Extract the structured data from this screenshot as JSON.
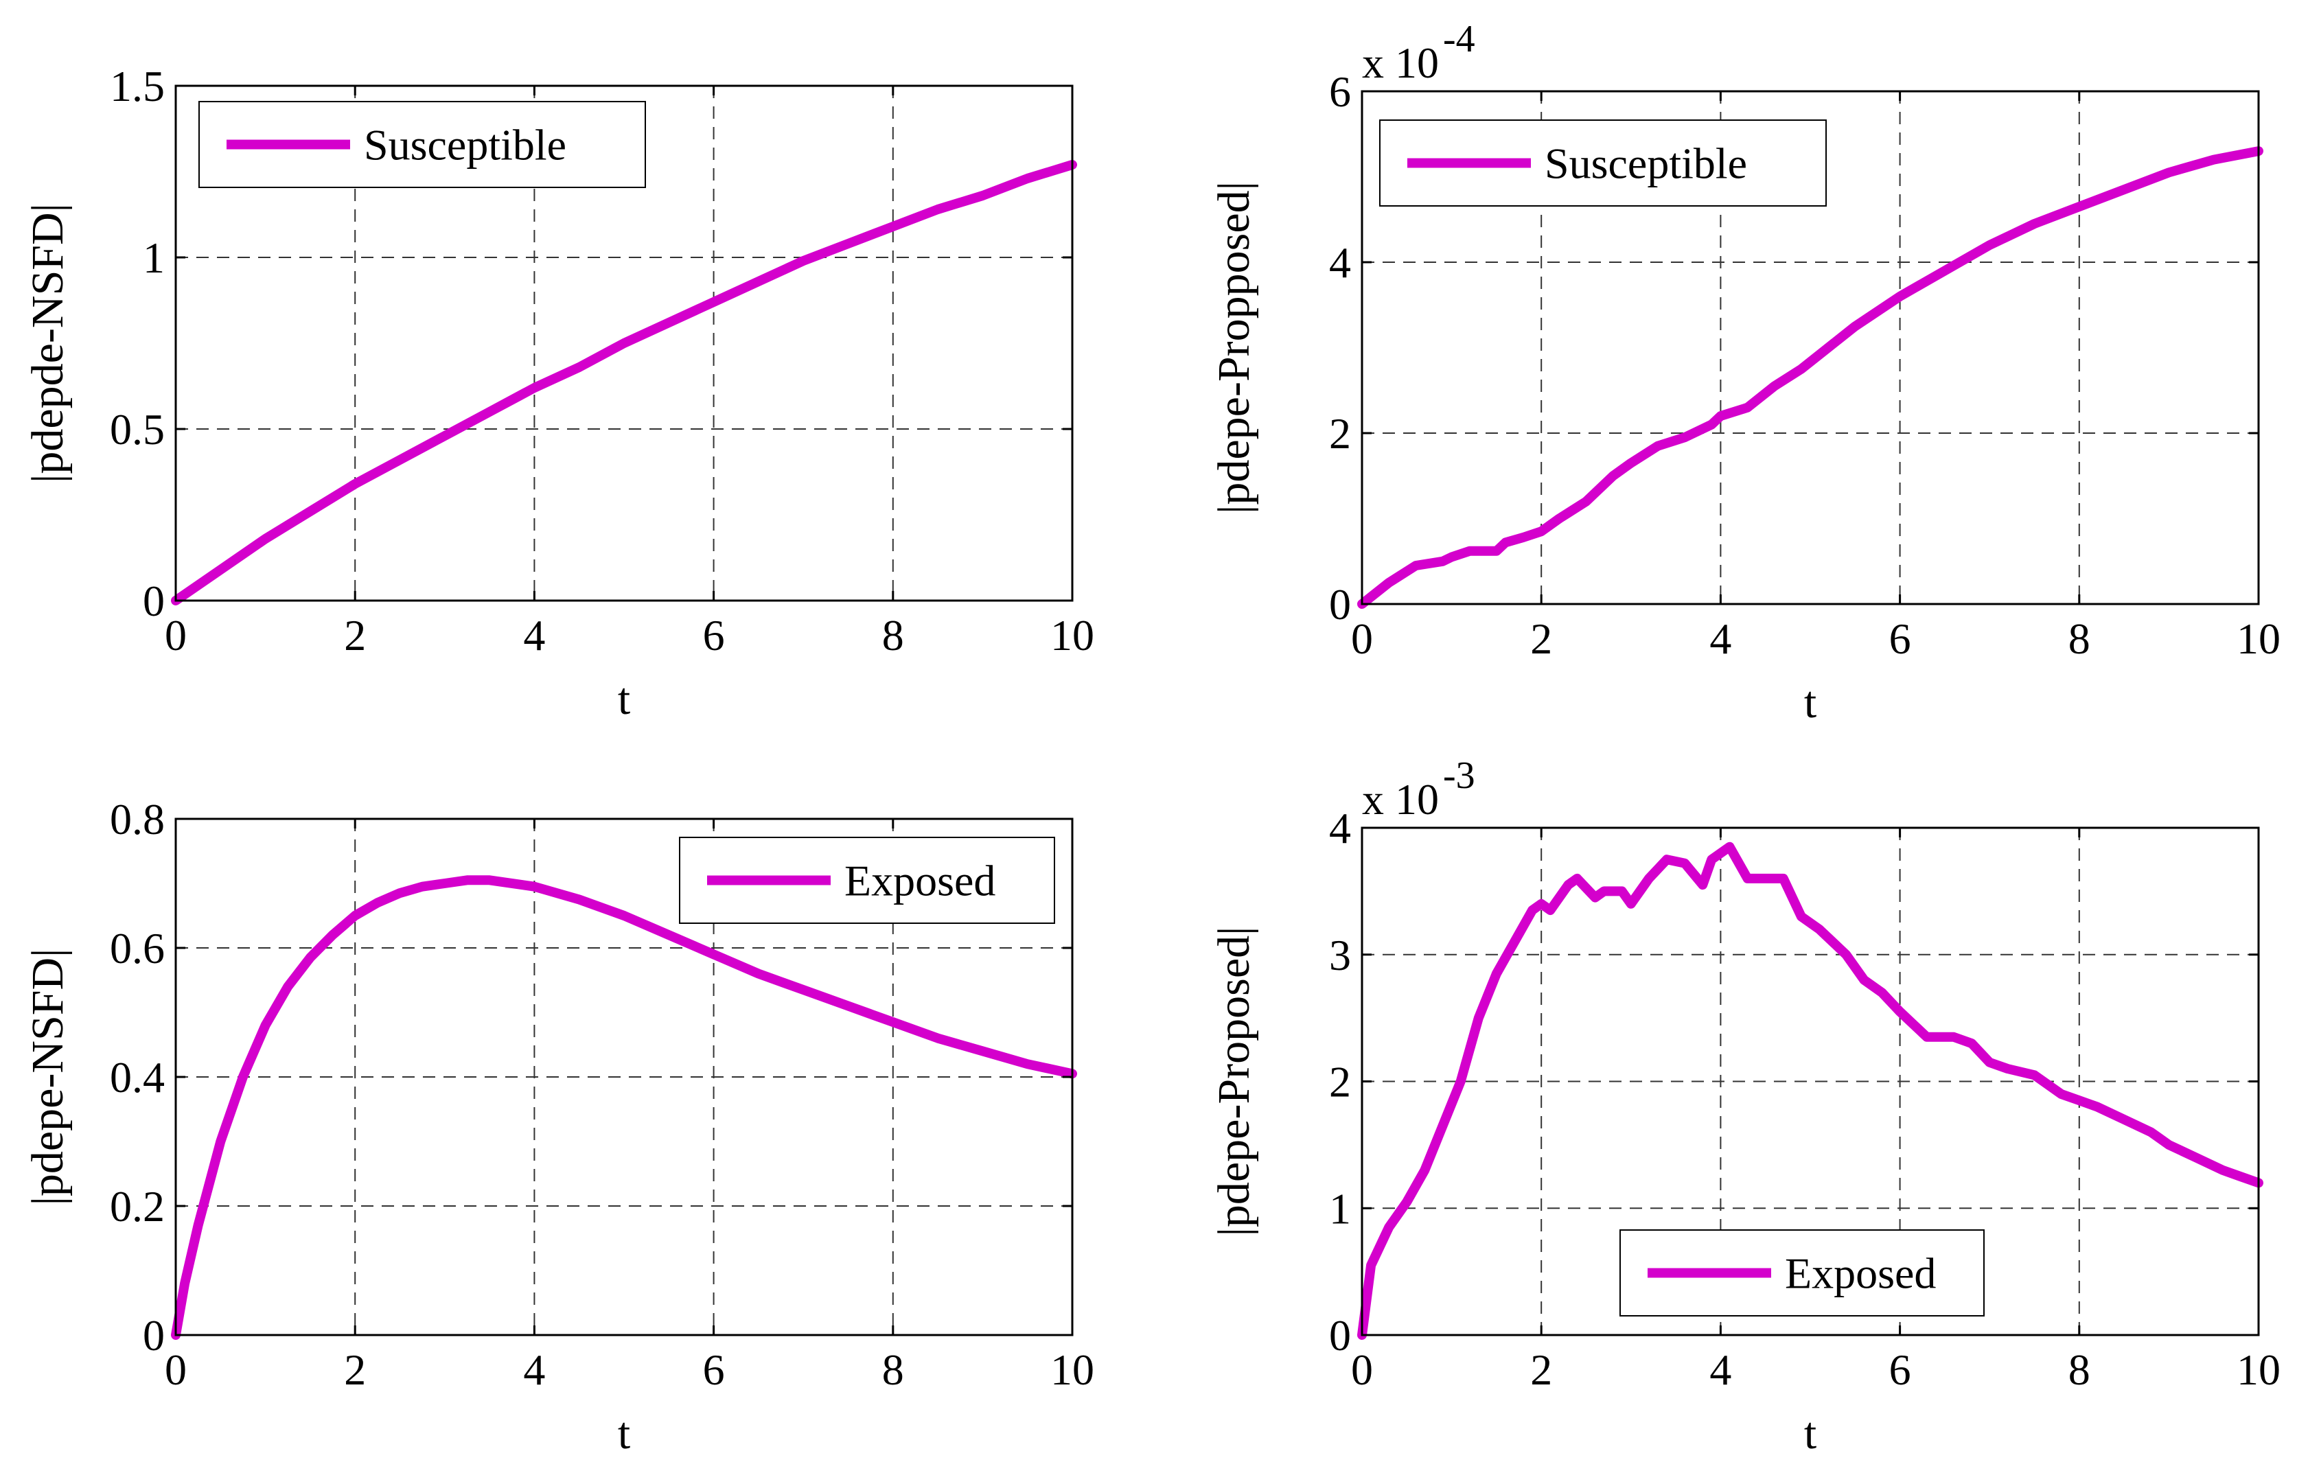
{
  "figure": {
    "line_color": "#d400cc"
  },
  "chart_data": [
    {
      "type": "line",
      "id": "susceptible-nsfd",
      "title": "",
      "xlabel": "t",
      "ylabel": "|pdepde-NSFD|",
      "xlim": [
        0,
        10
      ],
      "ylim": [
        0,
        1.5
      ],
      "xticks": [
        0,
        2,
        4,
        6,
        8,
        10
      ],
      "yticks": [
        0,
        0.5,
        1,
        1.5
      ],
      "xtick_labels": [
        "0",
        "2",
        "4",
        "6",
        "8",
        "10"
      ],
      "ytick_labels": [
        "0",
        "0.5",
        "1",
        "1.5"
      ],
      "multiplier_label": "",
      "grid": true,
      "legend": {
        "position": "top-left",
        "entries": [
          "Susceptible"
        ]
      },
      "series": [
        {
          "name": "Susceptible",
          "x": [
            0,
            0.5,
            1,
            1.5,
            2,
            2.5,
            3,
            3.5,
            4,
            4.5,
            5,
            5.5,
            6,
            6.5,
            7,
            7.5,
            8,
            8.5,
            9,
            9.5,
            10
          ],
          "y": [
            0,
            0.09,
            0.18,
            0.26,
            0.34,
            0.41,
            0.48,
            0.55,
            0.62,
            0.68,
            0.75,
            0.81,
            0.87,
            0.93,
            0.99,
            1.04,
            1.09,
            1.14,
            1.18,
            1.23,
            1.27
          ]
        }
      ]
    },
    {
      "type": "line",
      "id": "susceptible-proposed",
      "title": "",
      "xlabel": "t",
      "ylabel": "|pdepe-Propposed|",
      "xlim": [
        0,
        10
      ],
      "ylim": [
        0,
        6
      ],
      "xticks": [
        0,
        2,
        4,
        6,
        8,
        10
      ],
      "yticks": [
        0,
        2,
        4,
        6
      ],
      "xtick_labels": [
        "0",
        "2",
        "4",
        "6",
        "8",
        "10"
      ],
      "ytick_labels": [
        "0",
        "2",
        "4",
        "6"
      ],
      "multiplier_label": "x 10",
      "multiplier_exponent": "-4",
      "grid": true,
      "legend": {
        "position": "top-left",
        "entries": [
          "Susceptible"
        ]
      },
      "series": [
        {
          "name": "Susceptible",
          "x": [
            0,
            0.3,
            0.6,
            0.9,
            1.0,
            1.2,
            1.5,
            1.6,
            1.8,
            2.0,
            2.2,
            2.5,
            2.8,
            3.0,
            3.3,
            3.6,
            3.9,
            4.0,
            4.3,
            4.6,
            4.9,
            5.2,
            5.5,
            6.0,
            6.5,
            7.0,
            7.5,
            8.0,
            8.5,
            9.0,
            9.5,
            10
          ],
          "y": [
            0,
            0.25,
            0.45,
            0.5,
            0.55,
            0.62,
            0.62,
            0.72,
            0.78,
            0.85,
            1.0,
            1.2,
            1.5,
            1.65,
            1.85,
            1.95,
            2.1,
            2.2,
            2.3,
            2.55,
            2.75,
            3.0,
            3.25,
            3.6,
            3.9,
            4.2,
            4.45,
            4.65,
            4.85,
            5.05,
            5.2,
            5.3
          ]
        }
      ]
    },
    {
      "type": "line",
      "id": "exposed-nsfd",
      "title": "",
      "xlabel": "t",
      "ylabel": "|pdepe-NSFD|",
      "xlim": [
        0,
        10
      ],
      "ylim": [
        0,
        0.8
      ],
      "xticks": [
        0,
        2,
        4,
        6,
        8,
        10
      ],
      "yticks": [
        0,
        0.2,
        0.4,
        0.6,
        0.8
      ],
      "xtick_labels": [
        "0",
        "2",
        "4",
        "6",
        "8",
        "10"
      ],
      "ytick_labels": [
        "0",
        "0.2",
        "0.4",
        "0.6",
        "0.8"
      ],
      "multiplier_label": "",
      "grid": true,
      "legend": {
        "position": "top-right",
        "entries": [
          "Exposed"
        ]
      },
      "series": [
        {
          "name": "Exposed",
          "x": [
            0,
            0.1,
            0.25,
            0.5,
            0.75,
            1.0,
            1.25,
            1.5,
            1.75,
            2.0,
            2.25,
            2.5,
            2.75,
            3.0,
            3.25,
            3.5,
            4.0,
            4.5,
            5.0,
            5.5,
            6.0,
            6.5,
            7.0,
            7.5,
            8.0,
            8.5,
            9.0,
            9.5,
            10
          ],
          "y": [
            0,
            0.08,
            0.17,
            0.3,
            0.4,
            0.48,
            0.54,
            0.585,
            0.62,
            0.65,
            0.67,
            0.685,
            0.695,
            0.7,
            0.705,
            0.705,
            0.695,
            0.675,
            0.65,
            0.62,
            0.59,
            0.56,
            0.535,
            0.51,
            0.485,
            0.46,
            0.44,
            0.42,
            0.405
          ]
        }
      ]
    },
    {
      "type": "line",
      "id": "exposed-proposed",
      "title": "",
      "xlabel": "t",
      "ylabel": "|pdepe-Proposed|",
      "xlim": [
        0,
        10
      ],
      "ylim": [
        0,
        4
      ],
      "xticks": [
        0,
        2,
        4,
        6,
        8,
        10
      ],
      "yticks": [
        0,
        1,
        2,
        3,
        4
      ],
      "xtick_labels": [
        "0",
        "2",
        "4",
        "6",
        "8",
        "10"
      ],
      "ytick_labels": [
        "0",
        "1",
        "2",
        "3",
        "4"
      ],
      "multiplier_label": "x 10",
      "multiplier_exponent": "-3",
      "grid": true,
      "legend": {
        "position": "bottom-center",
        "entries": [
          "Exposed"
        ]
      },
      "series": [
        {
          "name": "Exposed",
          "x": [
            0,
            0.1,
            0.3,
            0.5,
            0.7,
            0.9,
            1.1,
            1.3,
            1.5,
            1.7,
            1.9,
            2.0,
            2.1,
            2.3,
            2.4,
            2.6,
            2.7,
            2.9,
            3.0,
            3.2,
            3.4,
            3.6,
            3.8,
            3.9,
            4.1,
            4.3,
            4.5,
            4.7,
            4.9,
            5.1,
            5.4,
            5.6,
            5.8,
            6.0,
            6.3,
            6.6,
            6.8,
            7.0,
            7.2,
            7.5,
            7.8,
            8.0,
            8.2,
            8.5,
            8.8,
            9.0,
            9.3,
            9.6,
            9.8,
            10
          ],
          "y": [
            0,
            0.55,
            0.85,
            1.05,
            1.3,
            1.65,
            2.0,
            2.5,
            2.85,
            3.1,
            3.35,
            3.4,
            3.35,
            3.55,
            3.6,
            3.45,
            3.5,
            3.5,
            3.4,
            3.6,
            3.75,
            3.72,
            3.55,
            3.75,
            3.85,
            3.6,
            3.6,
            3.6,
            3.3,
            3.2,
            3.0,
            2.8,
            2.7,
            2.55,
            2.35,
            2.35,
            2.3,
            2.15,
            2.1,
            2.05,
            1.9,
            1.85,
            1.8,
            1.7,
            1.6,
            1.5,
            1.4,
            1.3,
            1.25,
            1.2
          ]
        }
      ]
    }
  ]
}
